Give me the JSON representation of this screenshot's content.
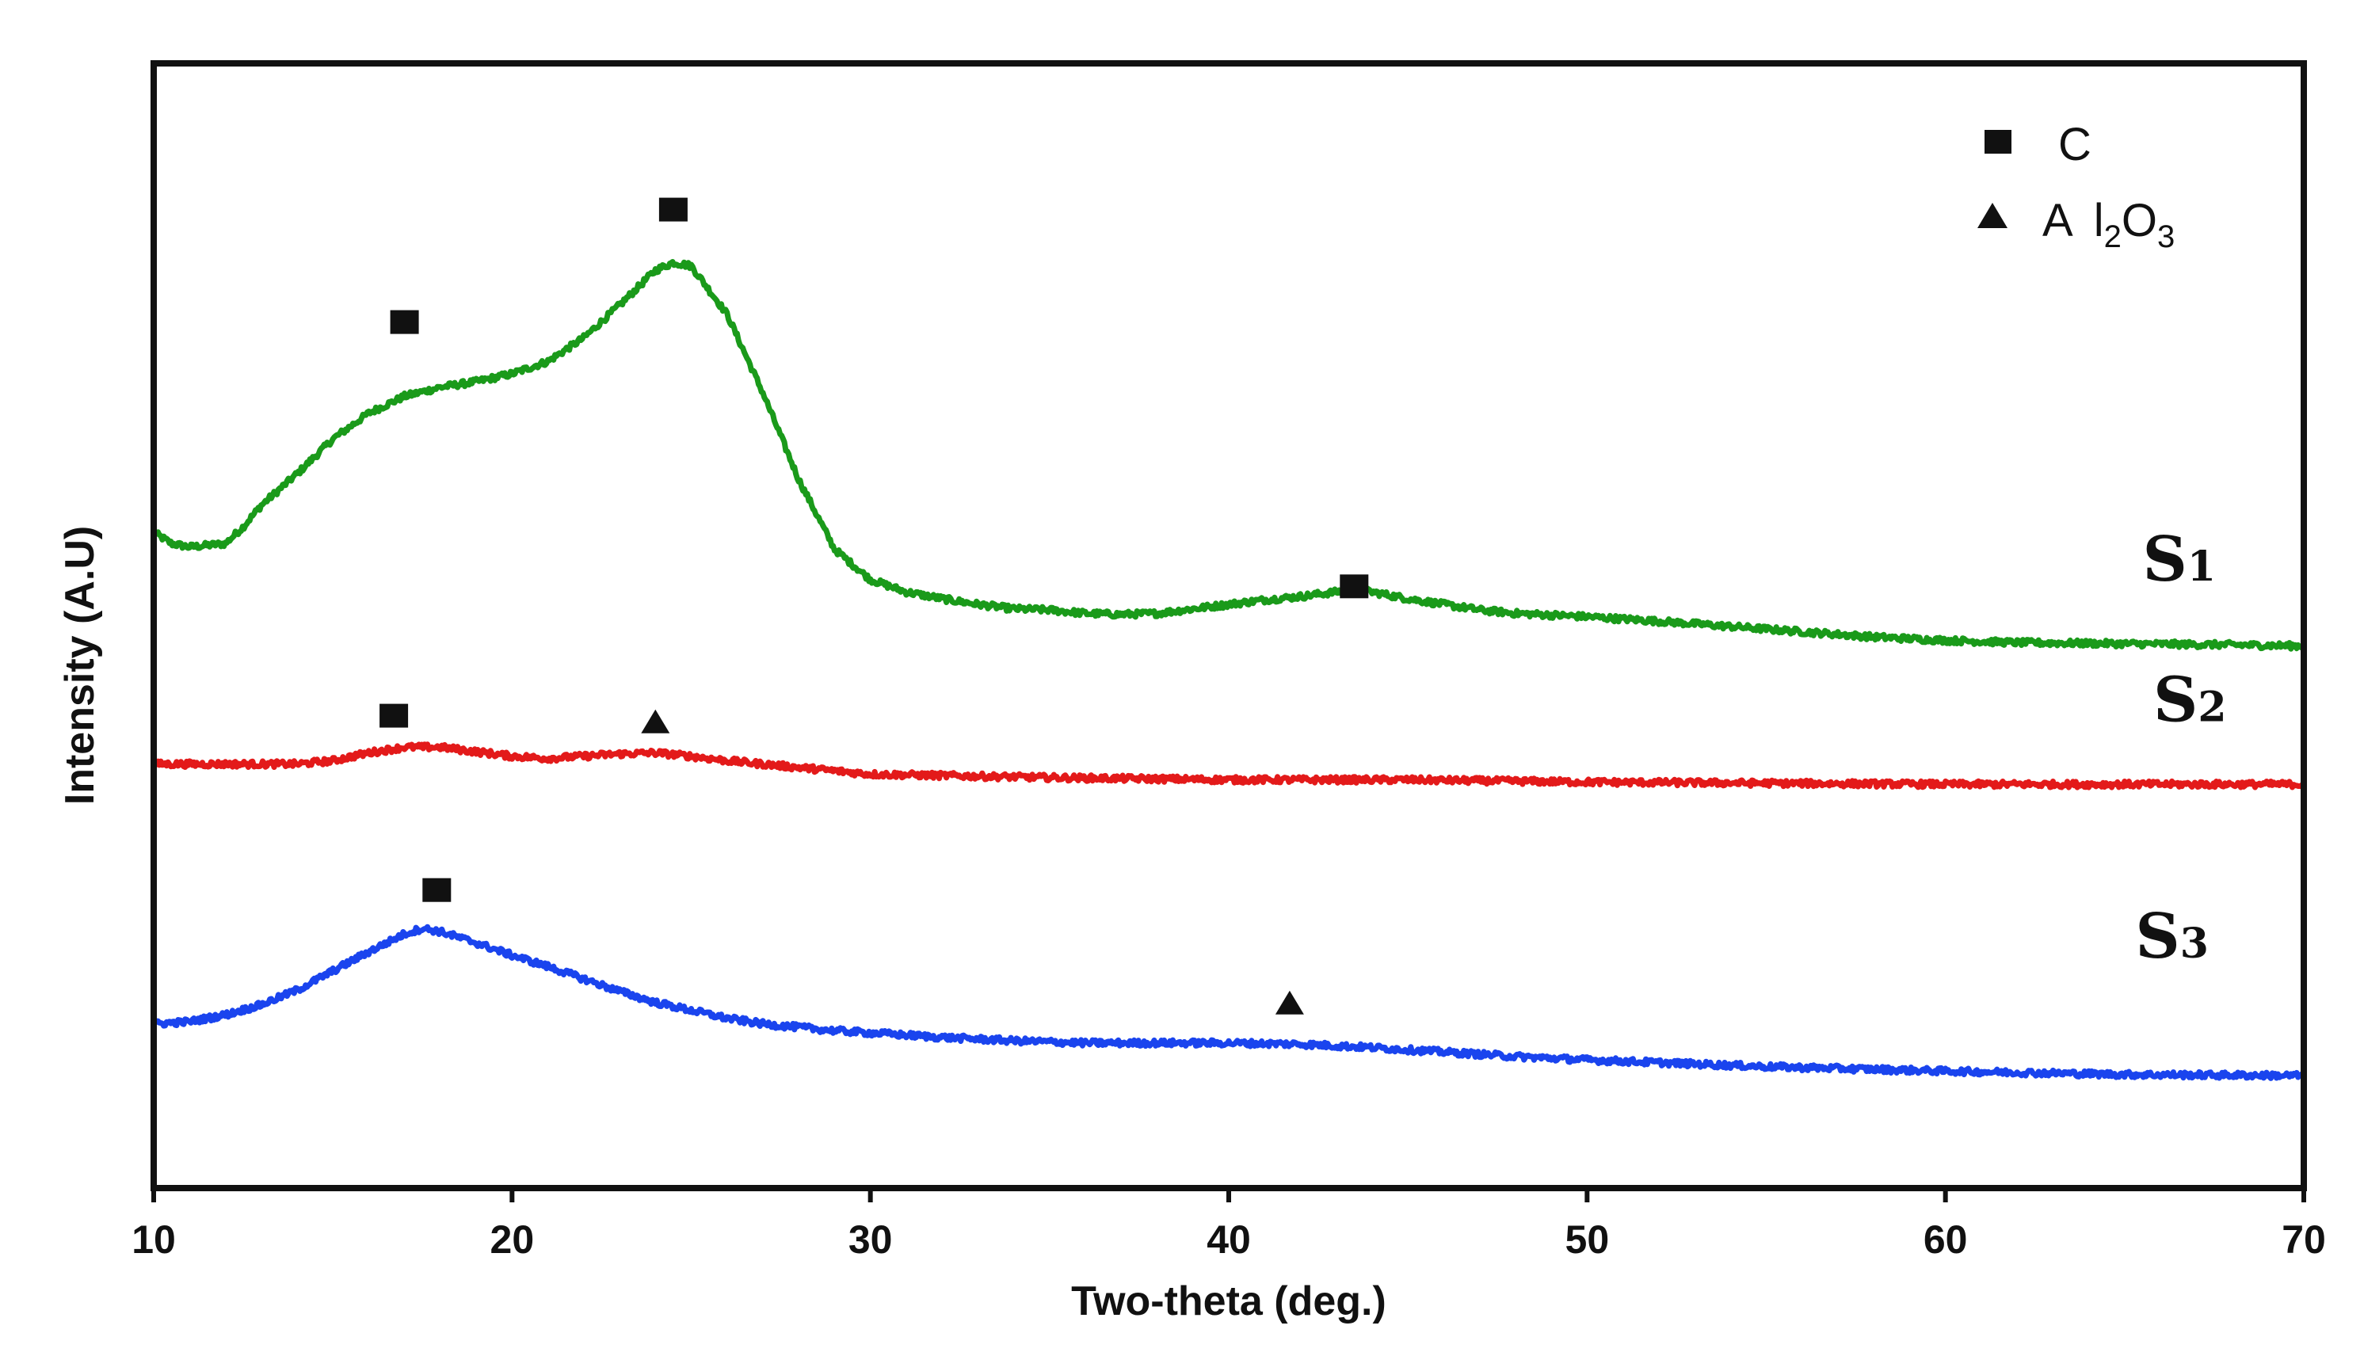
{
  "chart_data": {
    "type": "line",
    "title": "",
    "xlabel": "Two-theta (deg.)",
    "ylabel": "Intensity (A.U)",
    "xlim": [
      10,
      70
    ],
    "ylim": [
      0,
      100
    ],
    "xticks": [
      10,
      20,
      30,
      40,
      50,
      60,
      70
    ],
    "xtick_labels": [
      "10",
      "20",
      "30",
      "40",
      "50",
      "60",
      "70"
    ],
    "yticks_shown": false,
    "grid": false,
    "legend": {
      "position": "top-right",
      "entries": [
        {
          "marker": "square",
          "label": "C"
        },
        {
          "marker": "triangle",
          "label_main": "A",
          "label_tail_1": "l",
          "label_sub_1": "2",
          "label_tail_2": "O",
          "label_sub_2": "3"
        }
      ]
    },
    "series": [
      {
        "name": "S1",
        "label_main": "S",
        "label_sub": "1",
        "color": "#1a9a1a",
        "x": [
          10,
          10.5,
          11,
          12,
          12.5,
          13,
          14,
          15,
          16,
          17,
          18,
          19,
          20,
          21,
          22,
          23,
          24,
          24.5,
          25,
          26,
          27,
          28,
          29,
          30,
          31,
          32,
          33,
          34,
          35,
          36,
          37,
          38,
          39,
          40,
          41,
          42,
          43,
          43.5,
          44,
          45,
          46,
          47,
          48,
          50,
          52,
          55,
          58,
          60,
          62,
          65,
          68,
          70
        ],
        "y": [
          58.3,
          57.3,
          57.0,
          57.3,
          58.8,
          60.7,
          63.5,
          66.6,
          68.9,
          70.4,
          71.2,
          71.7,
          72.4,
          73.5,
          75.6,
          78.5,
          81.6,
          82.3,
          82.0,
          77.7,
          70.7,
          63.0,
          56.8,
          54.1,
          53.0,
          52.4,
          51.9,
          51.5,
          51.4,
          51.1,
          51.0,
          51.1,
          51.5,
          51.9,
          52.3,
          52.6,
          53.0,
          53.2,
          53.0,
          52.4,
          51.9,
          51.4,
          51.1,
          50.8,
          50.4,
          49.7,
          49.0,
          48.7,
          48.5,
          48.4,
          48.3,
          48.2
        ]
      },
      {
        "name": "S2",
        "label_main": "S",
        "label_sub": "2",
        "color": "#e31a1a",
        "x": [
          10,
          12,
          14,
          15,
          16,
          17,
          18,
          19,
          20,
          21,
          22,
          23,
          24,
          25,
          26,
          28,
          30,
          35,
          40,
          45,
          50,
          55,
          60,
          65,
          70
        ],
        "y": [
          37.7,
          37.7,
          37.7,
          38.0,
          38.7,
          39.2,
          39.2,
          38.8,
          38.4,
          38.2,
          38.4,
          38.6,
          38.7,
          38.4,
          38.0,
          37.4,
          36.8,
          36.5,
          36.3,
          36.3,
          36.1,
          36.0,
          35.9,
          35.9,
          35.9
        ]
      },
      {
        "name": "S3",
        "label_main": "S",
        "label_sub": "3",
        "color": "#1a44ee",
        "x": [
          10,
          11,
          12,
          13,
          14,
          15,
          16,
          17,
          17.5,
          18,
          19,
          20,
          21,
          22,
          23,
          24,
          25,
          26,
          27,
          28,
          29,
          30,
          32,
          34,
          36,
          38,
          40,
          42,
          44,
          46,
          48,
          50,
          55,
          60,
          65,
          70
        ],
        "y": [
          14.6,
          14.8,
          15.4,
          16.3,
          17.6,
          19.3,
          21.0,
          22.6,
          23.1,
          22.8,
          21.8,
          20.7,
          19.7,
          18.6,
          17.5,
          16.5,
          15.8,
          15.1,
          14.6,
          14.3,
          14.0,
          13.8,
          13.4,
          13.1,
          12.9,
          12.9,
          12.9,
          12.8,
          12.5,
          12.1,
          11.7,
          11.4,
          10.8,
          10.4,
          10.1,
          10.0
        ]
      }
    ],
    "annotations": [
      {
        "marker": "square",
        "x": 17.0,
        "y": 77.0,
        "series": "S1"
      },
      {
        "marker": "square",
        "x": 24.5,
        "y": 87.0,
        "series": "S1"
      },
      {
        "marker": "square",
        "x": 43.5,
        "y": 53.5,
        "series": "S1"
      },
      {
        "marker": "square",
        "x": 16.7,
        "y": 42.0,
        "series": "S2"
      },
      {
        "marker": "triangle",
        "x": 24.0,
        "y": 41.5,
        "series": "S2"
      },
      {
        "marker": "square",
        "x": 17.9,
        "y": 26.5,
        "series": "S3"
      },
      {
        "marker": "triangle",
        "x": 41.7,
        "y": 16.5,
        "series": "S3"
      }
    ],
    "sample_label_positions": [
      {
        "series": "S1",
        "x": 65.5,
        "y": 54.0
      },
      {
        "series": "S2",
        "x": 65.8,
        "y": 41.5
      },
      {
        "series": "S3",
        "x": 65.3,
        "y": 20.5
      }
    ]
  }
}
